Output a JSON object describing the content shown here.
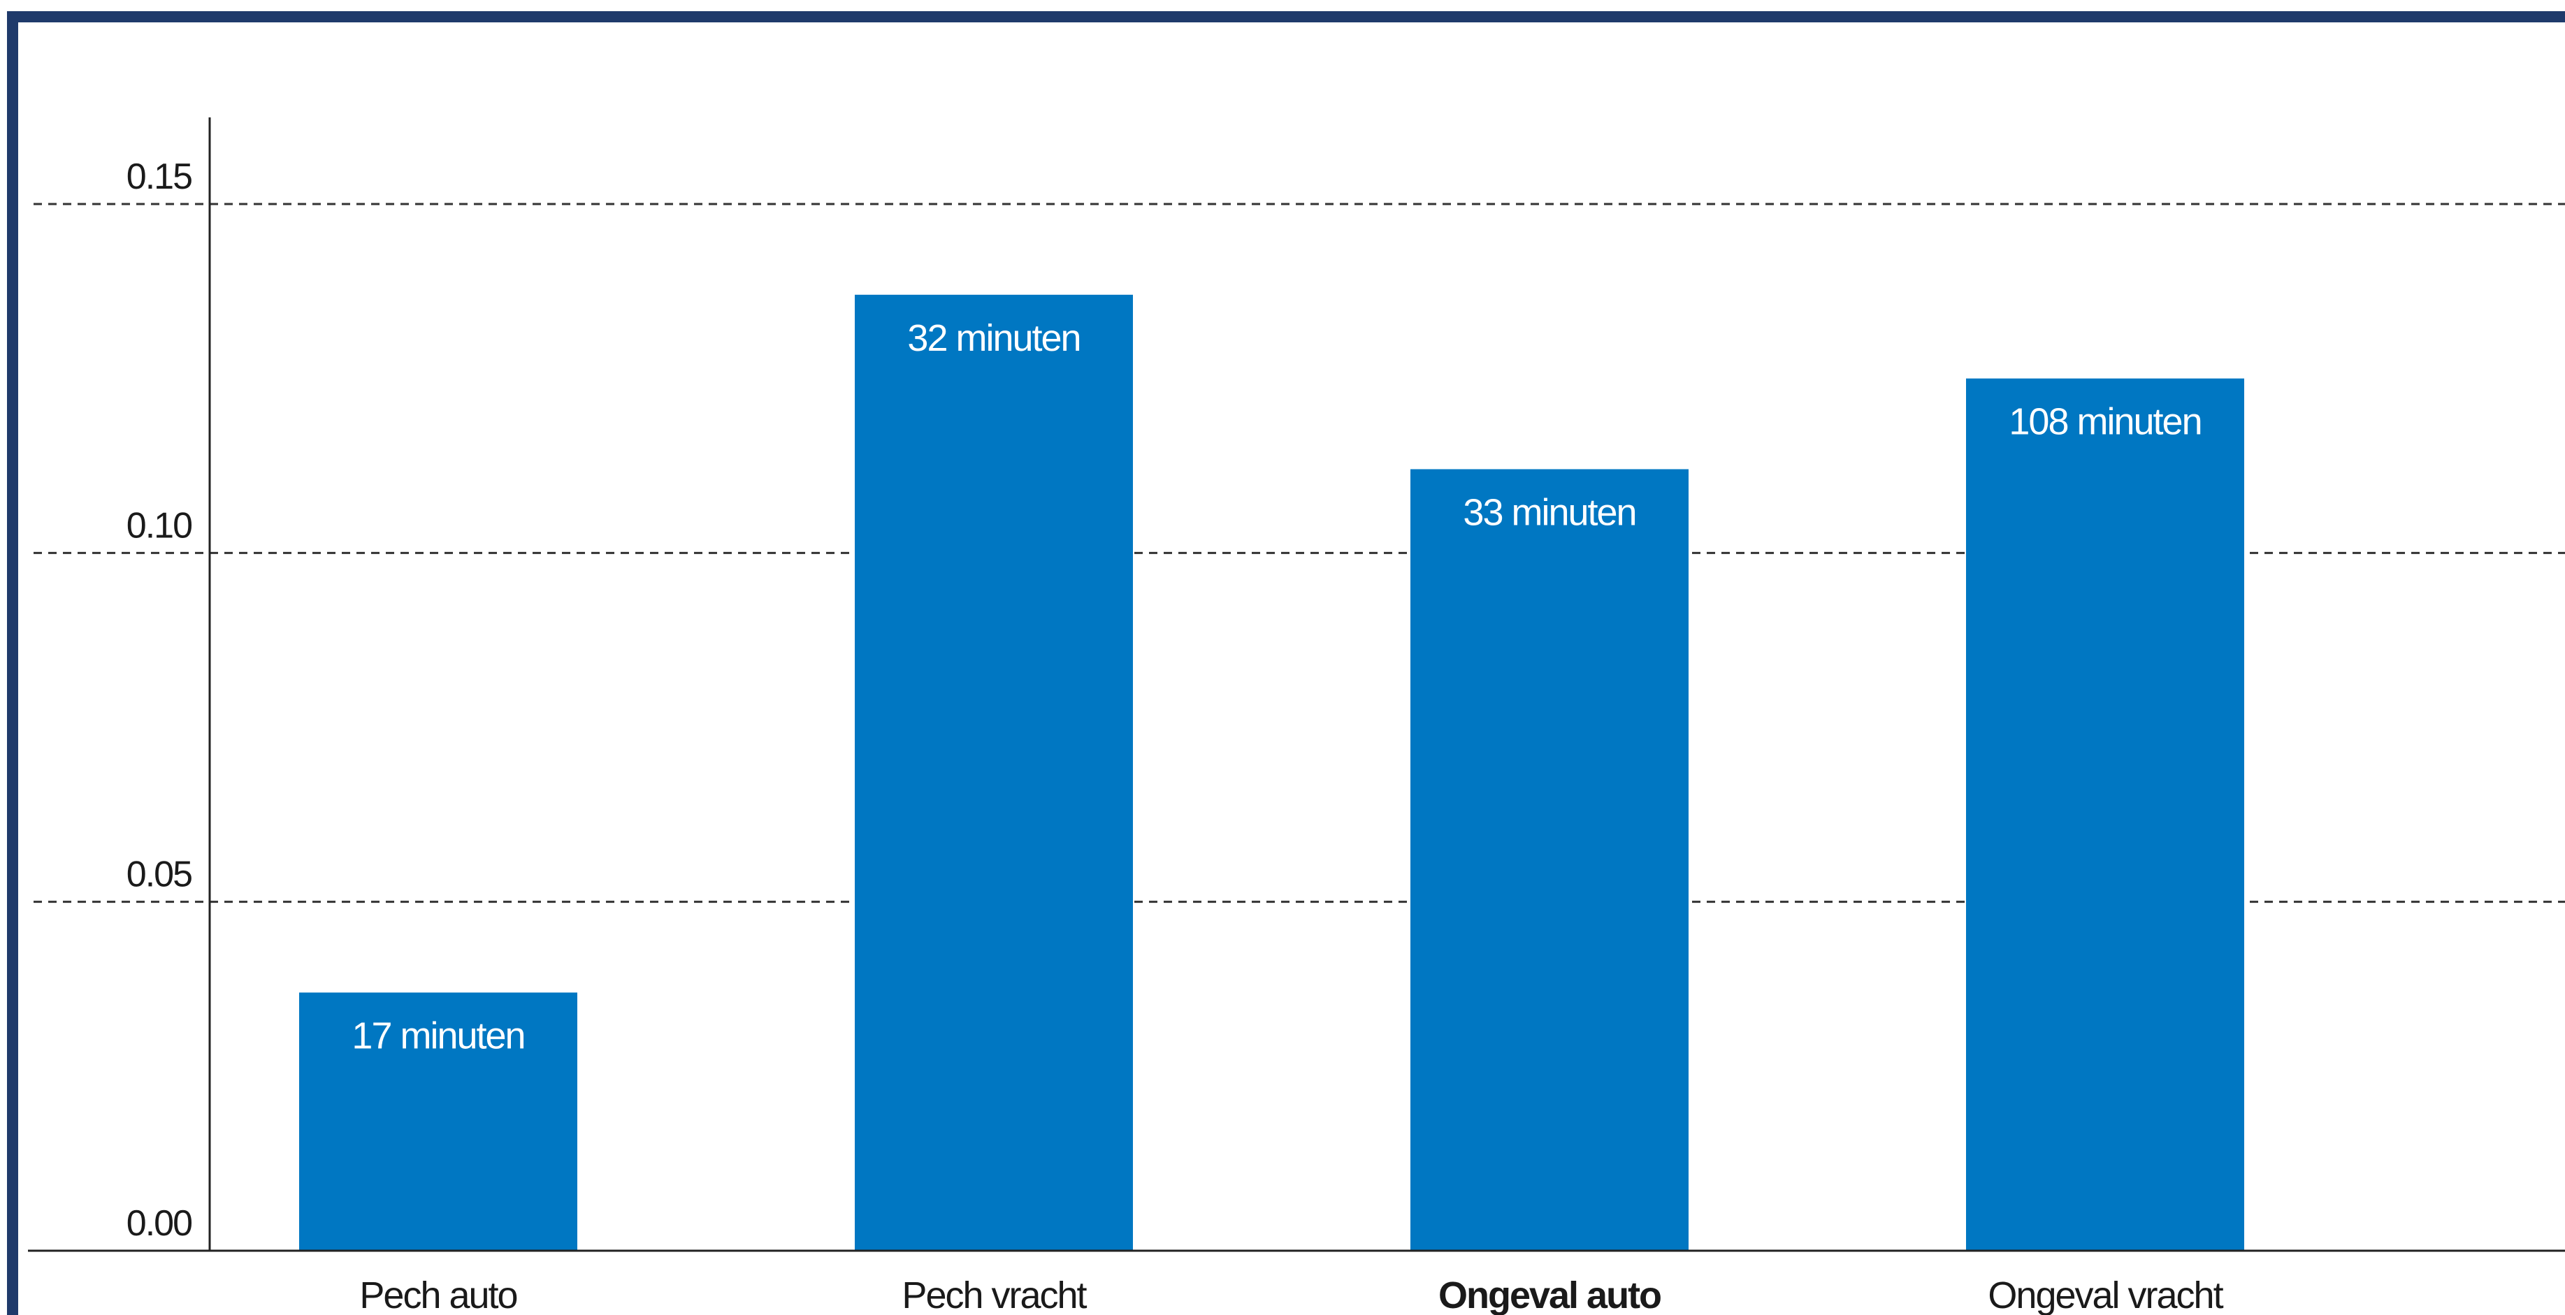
{
  "chart_data": {
    "type": "bar",
    "categories": [
      "Pech auto",
      "Pech vracht",
      "Ongeval auto",
      "Ongeval vracht"
    ],
    "category_emphasis": [
      false,
      false,
      true,
      false
    ],
    "values": [
      0.037,
      0.137,
      0.112,
      0.125
    ],
    "data_labels": [
      "17 minuten",
      "32 minuten",
      "33 minuten",
      "108 minuten"
    ],
    "y_ticks": [
      "0.00",
      "0.05",
      "0.10",
      "0.15"
    ],
    "ylim": [
      0,
      0.15
    ],
    "grid": true,
    "bar_color": "#0077c2",
    "frame_color": "#1f3a6b",
    "title": "",
    "xlabel": "",
    "ylabel": ""
  }
}
